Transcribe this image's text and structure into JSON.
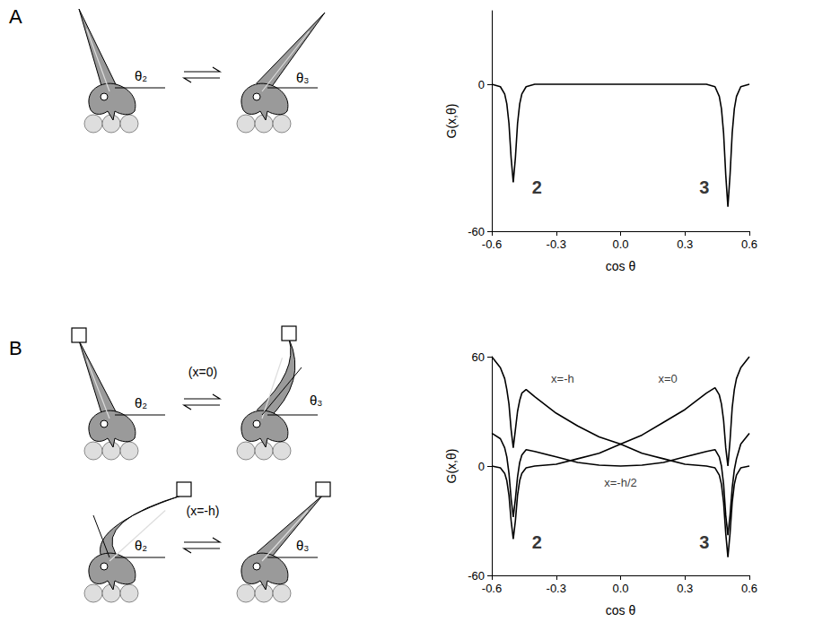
{
  "chart_data": [
    {
      "type": "line",
      "xlabel": "cos θ",
      "ylabel": "G(x,θ)",
      "x": [
        -0.6,
        -0.56,
        -0.54,
        -0.53,
        -0.52,
        -0.51,
        -0.5,
        -0.49,
        -0.48,
        -0.47,
        -0.46,
        -0.44,
        -0.4,
        -0.3,
        -0.2,
        -0.1,
        0,
        0.1,
        0.2,
        0.3,
        0.4,
        0.44,
        0.46,
        0.47,
        0.48,
        0.49,
        0.5,
        0.51,
        0.52,
        0.53,
        0.54,
        0.56,
        0.6
      ],
      "series": [
        {
          "color": "#000000",
          "values": [
            0,
            -1,
            -4,
            -8,
            -16,
            -30,
            -40,
            -30,
            -16,
            -8,
            -4,
            -1,
            0,
            0,
            0,
            0,
            0,
            0,
            0,
            0,
            0,
            -1,
            -5,
            -10,
            -20,
            -37,
            -50,
            -37,
            -20,
            -10,
            -5,
            -1,
            0
          ]
        }
      ],
      "xlim": [
        -0.6,
        0.6
      ],
      "xticks": [
        -0.6,
        -0.3,
        {
          "value": 0,
          "label": "0.0"
        },
        0.3,
        0.6
      ],
      "ylim": [
        -60,
        30
      ],
      "yticks": [
        -60,
        0
      ],
      "grid": false,
      "annotations": [
        {
          "text": "2",
          "x": -0.39,
          "y": -42
        },
        {
          "text": "3",
          "x": 0.39,
          "y": -42
        }
      ]
    },
    {
      "type": "line",
      "xlabel": "cos θ",
      "ylabel": "G(x,θ)",
      "x": [
        -0.6,
        -0.56,
        -0.54,
        -0.53,
        -0.52,
        -0.51,
        -0.5,
        -0.49,
        -0.48,
        -0.47,
        -0.46,
        -0.44,
        -0.4,
        -0.3,
        -0.2,
        -0.1,
        0,
        0.1,
        0.2,
        0.3,
        0.4,
        0.44,
        0.46,
        0.47,
        0.48,
        0.49,
        0.5,
        0.51,
        0.52,
        0.53,
        0.54,
        0.56,
        0.6
      ],
      "series": [
        {
          "color": "#000000",
          "values": [
            0,
            -1,
            -4,
            -8,
            -16,
            -30,
            -40,
            -30,
            -16,
            -8,
            -4,
            -1,
            0,
            1,
            4,
            7,
            12,
            17,
            24,
            31,
            40,
            43,
            39,
            34,
            25,
            10,
            0,
            14,
            32,
            42,
            48,
            54,
            60
          ]
        },
        {
          "color": "#000000",
          "values": [
            60,
            54,
            48,
            42,
            34,
            20,
            10,
            20,
            30,
            36,
            40,
            42,
            38,
            29,
            22,
            16,
            12,
            7,
            4,
            1,
            0,
            -1,
            -5,
            -10,
            -20,
            -37,
            -50,
            -37,
            -20,
            -10,
            -5,
            -1,
            0
          ]
        },
        {
          "color": "#000000",
          "values": [
            18,
            15,
            10,
            5,
            -4,
            -18,
            -28,
            -18,
            -6,
            2,
            6,
            9,
            8,
            5,
            2,
            0.5,
            0,
            0.5,
            2,
            5,
            8,
            9,
            5,
            0,
            -10,
            -27,
            -38,
            -27,
            -12,
            -2,
            4,
            12,
            18
          ]
        }
      ],
      "xlim": [
        -0.6,
        0.6
      ],
      "xticks": [
        -0.6,
        -0.3,
        {
          "value": 0,
          "label": "0.0"
        },
        0.3,
        0.6
      ],
      "ylim": [
        -60,
        60
      ],
      "yticks": [
        -60,
        0,
        60
      ],
      "grid": false,
      "annotations": [
        {
          "text": "x=-h",
          "x": -0.27,
          "y": 48
        },
        {
          "text": "x=0",
          "x": 0.22,
          "y": 48
        },
        {
          "text": "x=-h/2",
          "x": 0.0,
          "y": -9
        },
        {
          "text": "2",
          "x": -0.39,
          "y": -42
        },
        {
          "text": "3",
          "x": 0.39,
          "y": -42
        }
      ]
    }
  ],
  "diagram": {
    "A": {
      "letter": "A",
      "angles": [
        "θ₂",
        "θ₃"
      ]
    },
    "B": {
      "letter": "B",
      "angles": [
        "θ₂",
        "θ₃"
      ],
      "conditions": [
        "(x=0)",
        "(x=-h)"
      ]
    }
  }
}
